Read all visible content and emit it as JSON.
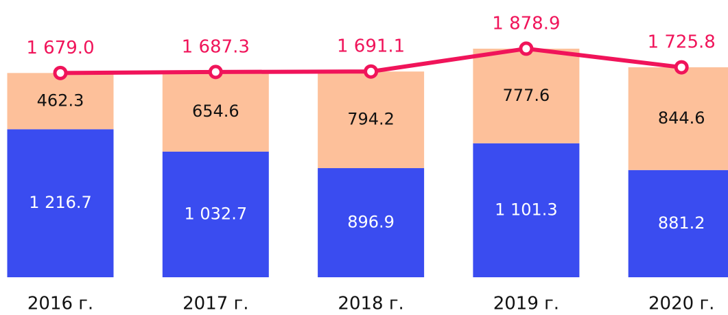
{
  "chart_data": {
    "type": "stacked-bar-line",
    "categories": [
      "2016 г.",
      "2017 г.",
      "2018 г.",
      "2019 г.",
      "2020 г."
    ],
    "series": [
      {
        "color": "#3a4cf0",
        "label_color": "#ffffff",
        "values": [
          1216.7,
          1032.7,
          896.9,
          1101.3,
          881.2
        ],
        "value_labels": [
          "1 216.7",
          "1 032.7",
          "896.9",
          "1 101.3",
          "881.2"
        ]
      },
      {
        "color": "#fdc09a",
        "label_color": "#111111",
        "values": [
          462.3,
          654.6,
          794.2,
          777.6,
          844.6
        ],
        "value_labels": [
          "462.3",
          "654.6",
          "794.2",
          "777.6",
          "844.6"
        ]
      }
    ],
    "line": {
      "color": "#f0145a",
      "values": [
        1679.0,
        1687.3,
        1691.1,
        1878.9,
        1725.8
      ],
      "value_labels": [
        "1 679.0",
        "1 687.3",
        "1 691.1",
        "1 878.9",
        "1 725.8"
      ]
    },
    "ylim": [
      0,
      2200
    ]
  }
}
